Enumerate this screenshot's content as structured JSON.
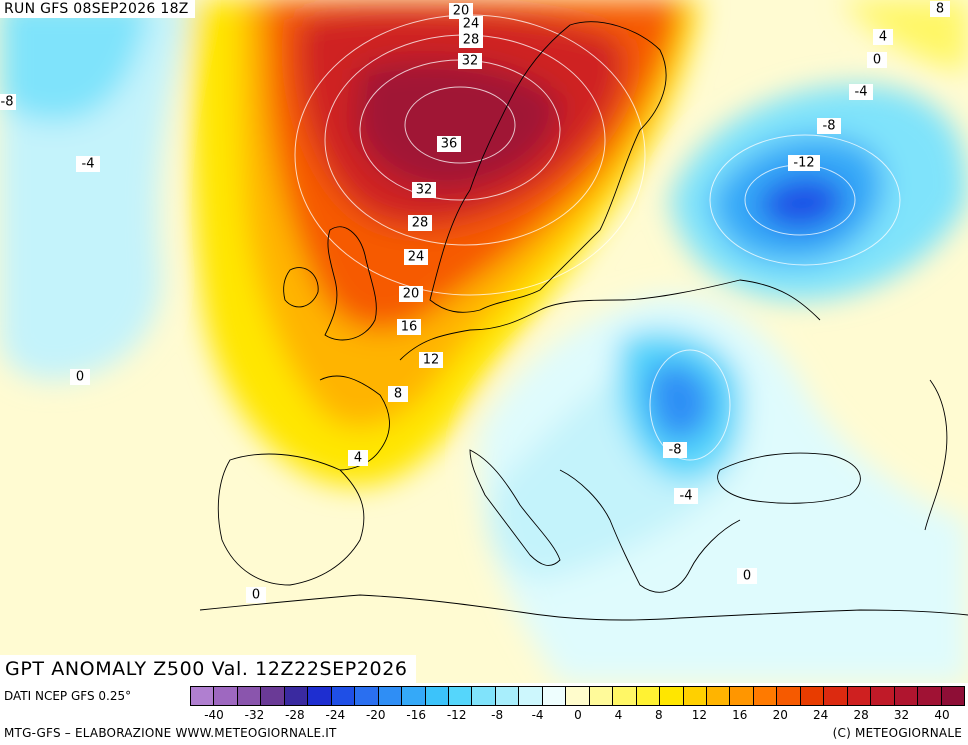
{
  "header": {
    "run_title": "RUN GFS 08SEP2026 18Z",
    "anomaly_title": "GPT ANOMALY Z500 Val. 12Z22SEP2026"
  },
  "footer": {
    "source_label": "DATI NCEP GFS 0.25°",
    "credit_left": "MTG-GFS – ELABORAZIONE WWW.METEOGIORNALE.IT",
    "credit_right": "(C) METEOGIORNALE"
  },
  "legend": {
    "ticks": [
      "-40",
      "-32",
      "-28",
      "-24",
      "-20",
      "-16",
      "-12",
      "-8",
      "-4",
      "0",
      "4",
      "8",
      "12",
      "16",
      "20",
      "24",
      "28",
      "32",
      "40"
    ],
    "colors": [
      "#b07fd0",
      "#9e68c0",
      "#8a55ad",
      "#6a3a96",
      "#3a2aa0",
      "#1e2ed0",
      "#1f4fe6",
      "#2a6ff0",
      "#2f8ef5",
      "#35a9f8",
      "#3cc3fa",
      "#55d6fb",
      "#80e3fb",
      "#a8eefc",
      "#cdf7fd",
      "#eefefe",
      "#fffccc",
      "#fffa9a",
      "#fff766",
      "#fff233",
      "#ffe600",
      "#ffd000",
      "#ffb400",
      "#ff9600",
      "#ff7a00",
      "#f65a00",
      "#e83c00",
      "#dc2a10",
      "#cf2020",
      "#c01a28",
      "#b0152f",
      "#a01234",
      "#8e0e36"
    ]
  },
  "map": {
    "contour_labels": [
      {
        "text": "20"
      },
      {
        "text": "24"
      },
      {
        "text": "28"
      },
      {
        "text": "32"
      },
      {
        "text": "36"
      },
      {
        "text": "32"
      },
      {
        "text": "28"
      },
      {
        "text": "24"
      },
      {
        "text": "20"
      },
      {
        "text": "16"
      },
      {
        "text": "12"
      },
      {
        "text": "8"
      },
      {
        "text": "4"
      },
      {
        "text": "0"
      },
      {
        "text": "-4"
      },
      {
        "text": "-8"
      },
      {
        "text": "8"
      },
      {
        "text": "4"
      },
      {
        "text": "0"
      },
      {
        "text": "-4"
      },
      {
        "text": "-8"
      },
      {
        "text": "-12"
      },
      {
        "text": "-8"
      },
      {
        "text": "-4"
      },
      {
        "text": "0"
      },
      {
        "text": "0"
      }
    ]
  }
}
